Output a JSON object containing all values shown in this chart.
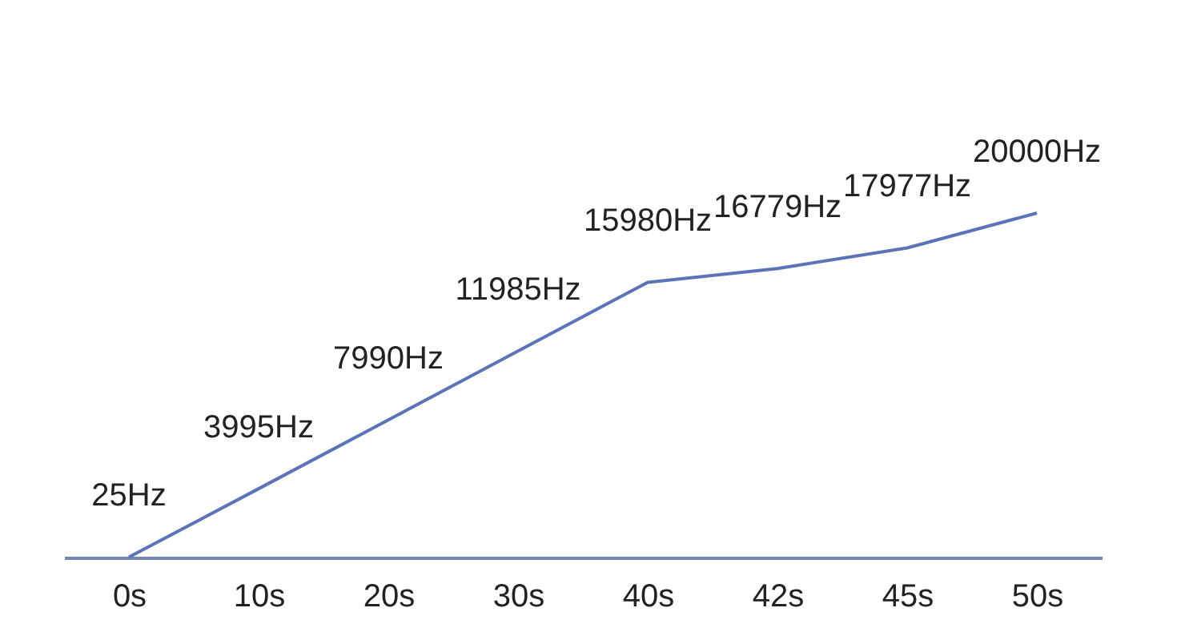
{
  "chart_data": {
    "type": "line",
    "categories": [
      "0s",
      "10s",
      "20s",
      "30s",
      "40s",
      "42s",
      "45s",
      "50s"
    ],
    "values": [
      25,
      3995,
      7990,
      11985,
      15980,
      16779,
      17977,
      20000
    ],
    "value_labels": [
      "25Hz",
      "3995Hz",
      "7990Hz",
      "11985Hz",
      "15980Hz",
      "16779Hz",
      "17977Hz",
      "20000Hz"
    ],
    "color": "#5b73b8",
    "marker": "none",
    "grid": false
  }
}
